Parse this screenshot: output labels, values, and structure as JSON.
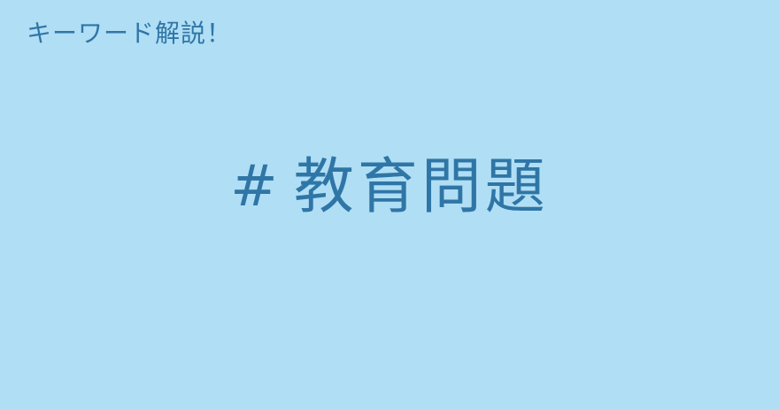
{
  "header": {
    "label": "キーワード解説！"
  },
  "keyword": {
    "hash": "#",
    "term": "教育問題"
  }
}
